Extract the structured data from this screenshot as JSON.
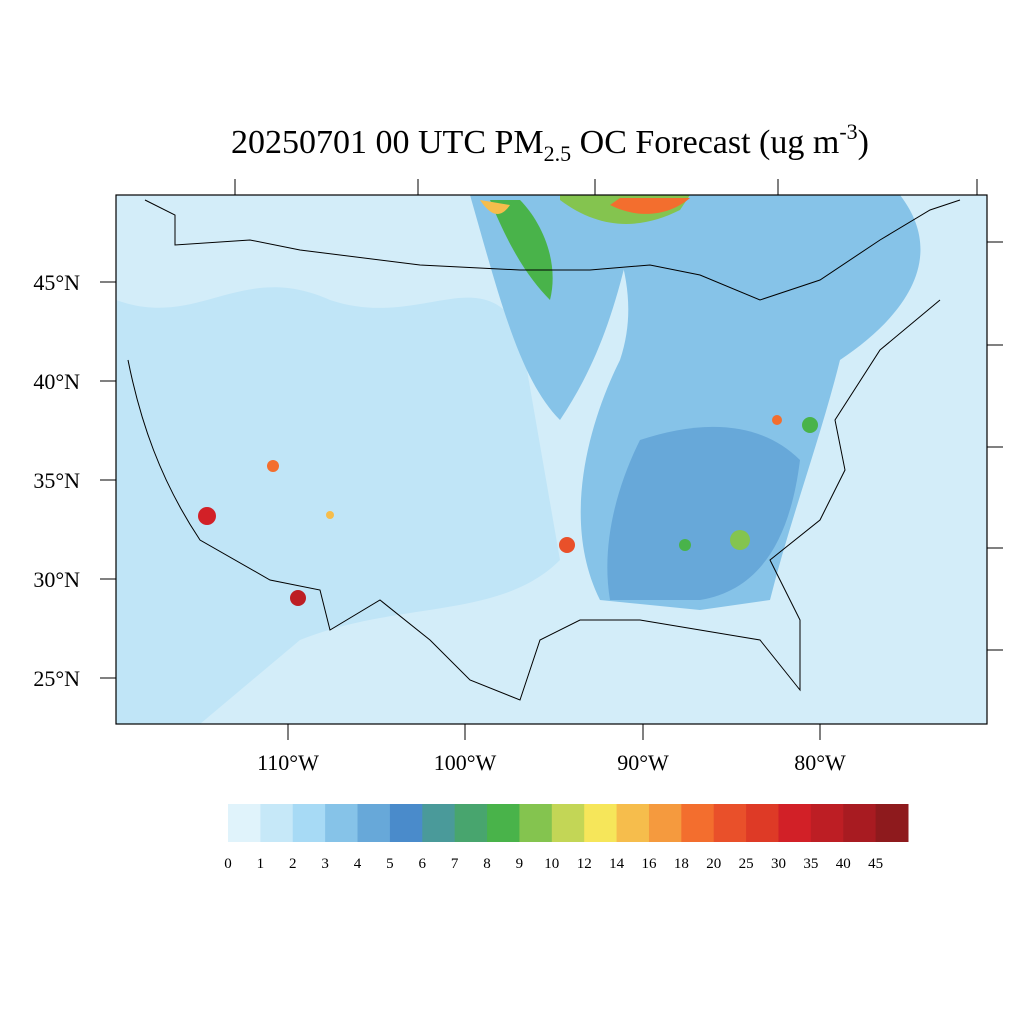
{
  "title": [
    "20250701 00 UTC PM",
    "2.5",
    " OC Forecast (ug m",
    "-3",
    ")"
  ],
  "lat_labels": [
    "45°N",
    "40°N",
    "35°N",
    "30°N",
    "25°N"
  ],
  "lon_labels": [
    "110°W",
    "100°W",
    "90°W",
    "80°W"
  ],
  "colorbar": {
    "labels": [
      "0",
      "1",
      "2",
      "3",
      "4",
      "5",
      "6",
      "7",
      "8",
      "9",
      "10",
      "12",
      "14",
      "16",
      "18",
      "20",
      "25",
      "30",
      "35",
      "40",
      "45"
    ],
    "colors": [
      "#e0f3fb",
      "#c6e8f8",
      "#a7daf5",
      "#86c3e8",
      "#67a8d9",
      "#4a8bcb",
      "#4a9a9a",
      "#48a56e",
      "#49b34a",
      "#84c44f",
      "#c3d656",
      "#f6e65a",
      "#f6bd4c",
      "#f59a3e",
      "#f36e2e",
      "#e9502a",
      "#de3a26",
      "#d22027",
      "#bd1e24",
      "#a81b21",
      "#8e1a1d"
    ]
  }
}
